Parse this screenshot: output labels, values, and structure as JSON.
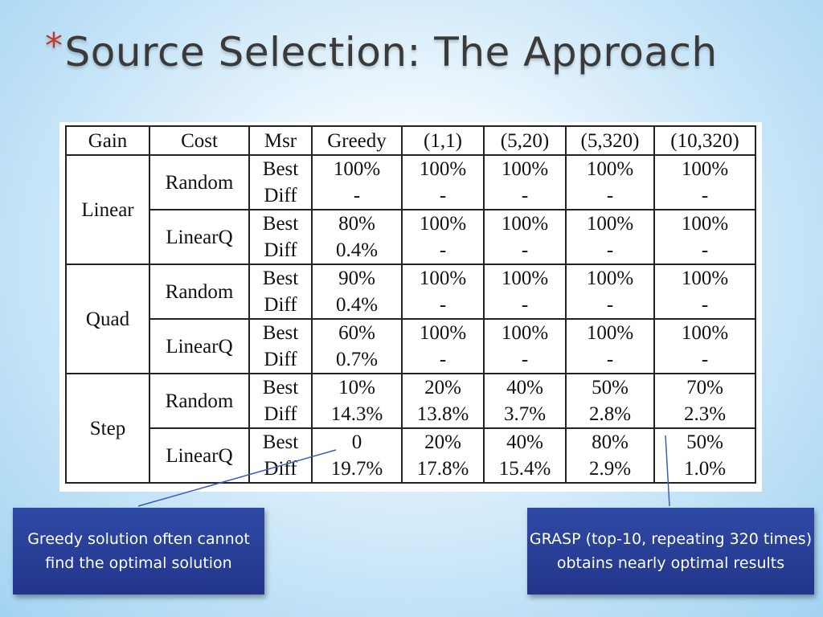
{
  "slide": {
    "title_marker": "*",
    "title": "Source Selection: The Approach"
  },
  "table": {
    "headers": [
      "Gain",
      "Cost",
      "Msr",
      "Greedy",
      "(1,1)",
      "(5,20)",
      "(5,320)",
      "(10,320)"
    ],
    "measures": [
      "Best",
      "Diff"
    ],
    "groups": [
      {
        "gain": "Linear",
        "rows": [
          {
            "cost": "Random",
            "best": [
              "100%",
              "100%",
              "100%",
              "100%",
              "100%"
            ],
            "diff": [
              "-",
              "-",
              "-",
              "-",
              "-"
            ]
          },
          {
            "cost": "LinearQ",
            "best": [
              "80%",
              "100%",
              "100%",
              "100%",
              "100%"
            ],
            "diff": [
              "0.4%",
              "-",
              "-",
              "-",
              "-"
            ]
          }
        ]
      },
      {
        "gain": "Quad",
        "rows": [
          {
            "cost": "Random",
            "best": [
              "90%",
              "100%",
              "100%",
              "100%",
              "100%"
            ],
            "diff": [
              "0.4%",
              "-",
              "-",
              "-",
              "-"
            ]
          },
          {
            "cost": "LinearQ",
            "best": [
              "60%",
              "100%",
              "100%",
              "100%",
              "100%"
            ],
            "diff": [
              "0.7%",
              "-",
              "-",
              "-",
              "-"
            ]
          }
        ]
      },
      {
        "gain": "Step",
        "rows": [
          {
            "cost": "Random",
            "best": [
              "10%",
              "20%",
              "40%",
              "50%",
              "70%"
            ],
            "diff": [
              "14.3%",
              "13.8%",
              "3.7%",
              "2.8%",
              "2.3%"
            ]
          },
          {
            "cost": "LinearQ",
            "best": [
              "0",
              "20%",
              "40%",
              "80%",
              "50%"
            ],
            "diff": [
              "19.7%",
              "17.8%",
              "15.4%",
              "2.9%",
              "1.0%"
            ]
          }
        ]
      }
    ]
  },
  "callouts": {
    "left": "Greedy solution often cannot find the optimal solution",
    "right": "GRASP (top-10, repeating 320 times) obtains nearly optimal results"
  },
  "colors": {
    "title_marker": "#c0392b",
    "callout_bg": "#2a3f9a"
  }
}
